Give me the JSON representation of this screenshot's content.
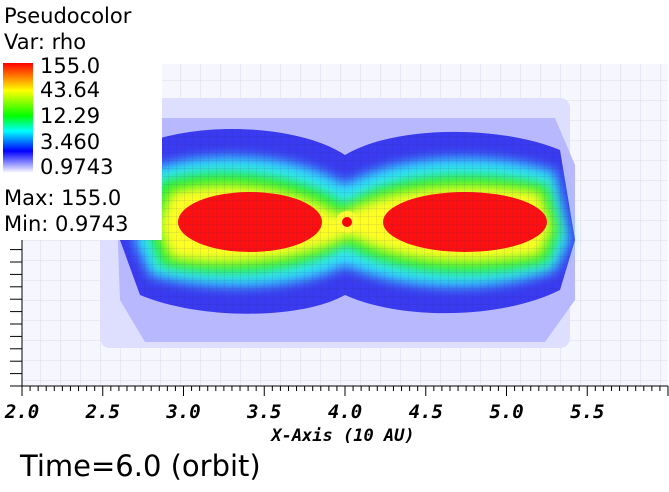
{
  "legend": {
    "title": "Pseudocolor",
    "var": "Var: rho",
    "ticks": [
      "155.0",
      "43.64",
      "12.29",
      "3.460",
      "0.9743"
    ],
    "max_label": "Max:  155.0",
    "min_label": "Min:  0.9743"
  },
  "time_label": "Time=6.0 (orbit)",
  "chart_data": {
    "type": "heatmap",
    "variable": "rho",
    "xlabel": "X-Axis (10 AU)",
    "xlim": [
      2.0,
      6.0
    ],
    "xticks": [
      "2.0",
      "2.5",
      "3.0",
      "3.5",
      "4.0",
      "4.5",
      "5.0",
      "5.5"
    ],
    "value_range": [
      0.9743,
      155.0
    ],
    "colormap": [
      "#ffffff",
      "#0000ff",
      "#00ffff",
      "#00ff00",
      "#ffff00",
      "#ff0000"
    ],
    "scale": "log",
    "features": [
      {
        "name": "left lobe",
        "x_center": 3.35,
        "peak": 155.0
      },
      {
        "name": "right lobe",
        "x_center": 4.65,
        "peak": 155.0
      },
      {
        "name": "center star",
        "x_center": 4.0,
        "peak": 155.0
      }
    ]
  }
}
